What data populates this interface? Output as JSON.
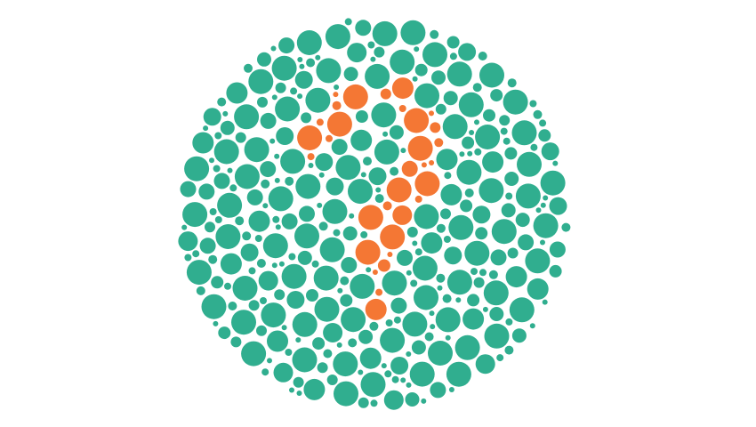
{
  "plate": {
    "background_color": "#ffffff",
    "dot_color": "#30ae8f",
    "figure_color": "#f47734",
    "figure": "question-mark-icon"
  }
}
